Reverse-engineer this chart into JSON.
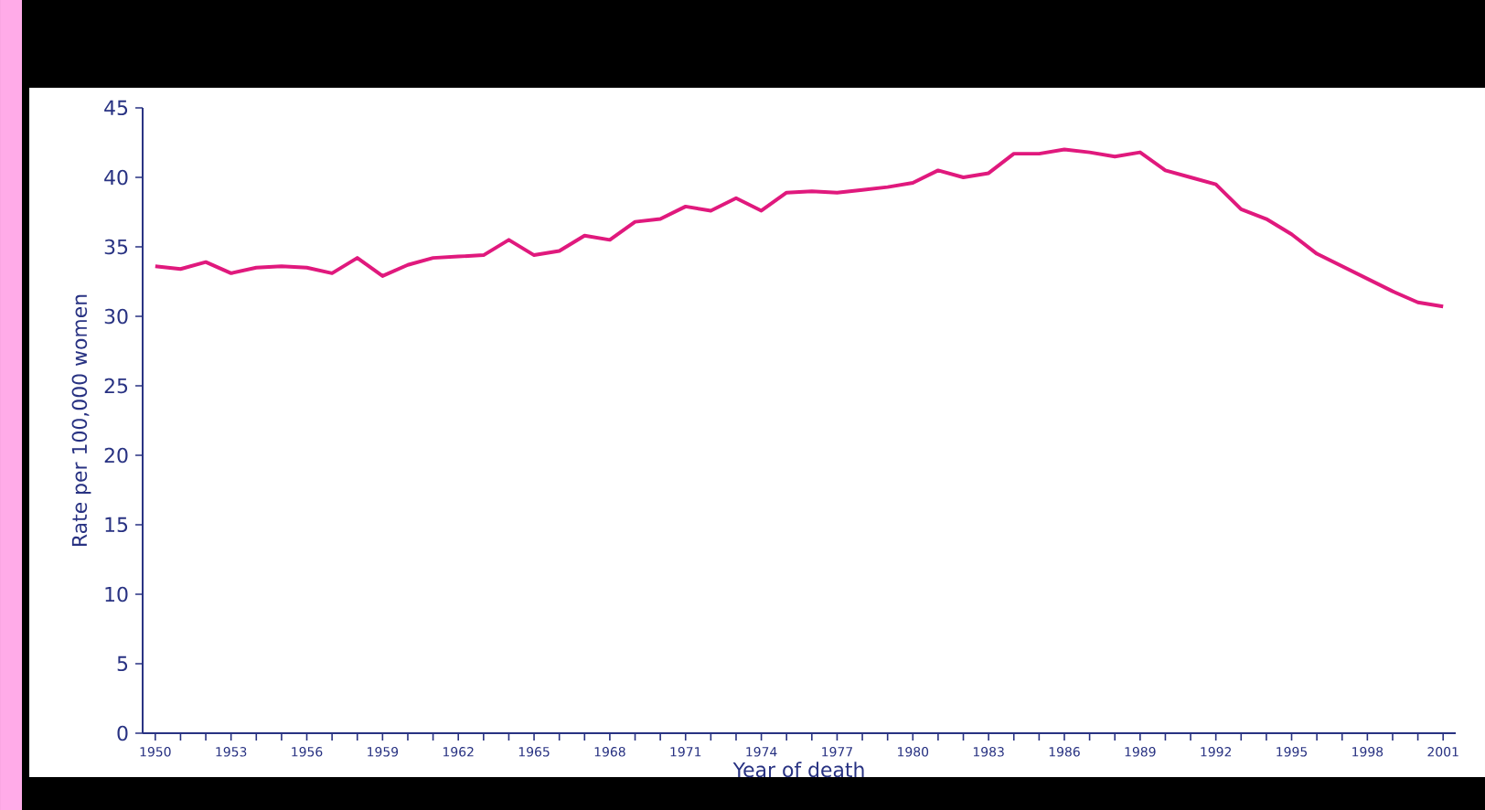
{
  "chart_data": {
    "type": "line",
    "xlabel": "Year of death",
    "ylabel": "Rate per 100,000 women",
    "color": "#e0197d",
    "x": [
      1950,
      1951,
      1952,
      1953,
      1954,
      1955,
      1956,
      1957,
      1958,
      1959,
      1960,
      1961,
      1962,
      1963,
      1964,
      1965,
      1966,
      1967,
      1968,
      1969,
      1970,
      1971,
      1972,
      1973,
      1974,
      1975,
      1976,
      1977,
      1978,
      1979,
      1980,
      1981,
      1982,
      1983,
      1984,
      1985,
      1986,
      1987,
      1988,
      1989,
      1990,
      1991,
      1992,
      1993,
      1994,
      1995,
      1996,
      1997,
      1998,
      1999,
      2000,
      2001
    ],
    "values": [
      33.6,
      33.4,
      33.9,
      33.1,
      33.5,
      33.6,
      33.5,
      33.1,
      34.2,
      32.9,
      33.7,
      34.2,
      34.3,
      34.4,
      35.5,
      34.4,
      34.7,
      35.8,
      35.5,
      36.8,
      37.0,
      37.9,
      37.6,
      38.5,
      37.6,
      38.9,
      39.0,
      38.9,
      39.1,
      39.3,
      39.6,
      40.5,
      40.0,
      40.3,
      41.7,
      41.7,
      42.0,
      41.8,
      41.5,
      41.8,
      40.5,
      40.0,
      39.5,
      37.7,
      37.0,
      35.9,
      34.5,
      33.6,
      32.7,
      31.8,
      31.0,
      30.7
    ],
    "xlim": [
      1949.5,
      2001.5
    ],
    "ylim": [
      0,
      45
    ],
    "yticks": [
      0,
      5,
      10,
      15,
      20,
      25,
      30,
      35,
      40,
      45
    ],
    "xticks": [
      1950,
      {
        "value": 1951,
        "label": null
      },
      {
        "value": 1952,
        "label": null
      },
      1953,
      {
        "value": 1954,
        "label": null
      },
      {
        "value": 1955,
        "label": null
      },
      1956,
      {
        "value": 1957,
        "label": null
      },
      {
        "value": 1958,
        "label": null
      },
      1959,
      {
        "value": 1960,
        "label": null
      },
      {
        "value": 1961,
        "label": null
      },
      1962,
      {
        "value": 1963,
        "label": null
      },
      {
        "value": 1964,
        "label": null
      },
      1965,
      {
        "value": 1966,
        "label": null
      },
      {
        "value": 1967,
        "label": null
      },
      1968,
      {
        "value": 1969,
        "label": null
      },
      {
        "value": 1970,
        "label": null
      },
      1971,
      {
        "value": 1972,
        "label": null
      },
      {
        "value": 1973,
        "label": null
      },
      1974,
      {
        "value": 1975,
        "label": null
      },
      {
        "value": 1976,
        "label": null
      },
      1977,
      {
        "value": 1978,
        "label": null
      },
      {
        "value": 1979,
        "label": null
      },
      1980,
      {
        "value": 1981,
        "label": null
      },
      {
        "value": 1982,
        "label": null
      },
      1983,
      {
        "value": 1984,
        "label": null
      },
      {
        "value": 1985,
        "label": null
      },
      1986,
      {
        "value": 1987,
        "label": null
      },
      {
        "value": 1988,
        "label": null
      },
      1989,
      {
        "value": 1990,
        "label": null
      },
      {
        "value": 1991,
        "label": null
      },
      1992,
      {
        "value": 1993,
        "label": null
      },
      {
        "value": 1994,
        "label": null
      },
      1995,
      {
        "value": 1996,
        "label": null
      },
      {
        "value": 1997,
        "label": null
      },
      1998,
      {
        "value": 1999,
        "label": null
      },
      {
        "value": 2000,
        "label": null
      },
      2001
    ]
  }
}
